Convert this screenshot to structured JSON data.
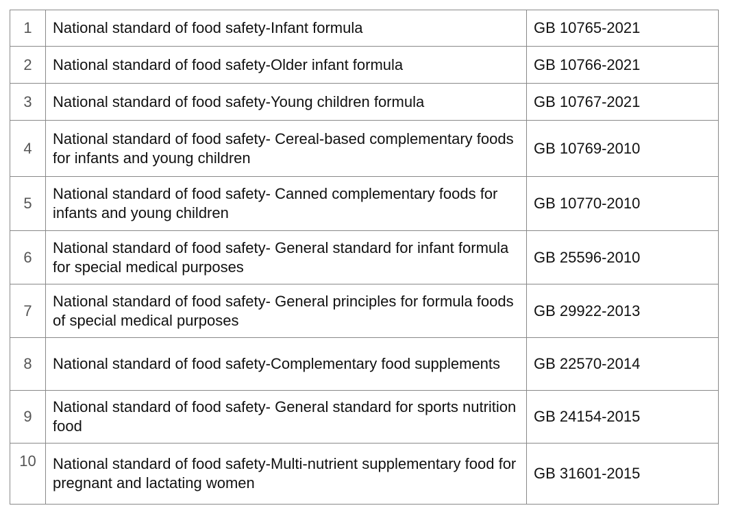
{
  "rows": [
    {
      "no": "1",
      "name": "National standard of food safety-Infant formula",
      "code": "GB 10765-2021"
    },
    {
      "no": "2",
      "name": "National standard of food safety-Older infant formula",
      "code": "GB 10766-2021"
    },
    {
      "no": "3",
      "name": "National standard of food safety-Young children formula",
      "code": "GB 10767-2021"
    },
    {
      "no": "4",
      "name": "National standard of food safety- Cereal-based complementary foods for infants and young children",
      "code": "GB 10769-2010"
    },
    {
      "no": "5",
      "name": "National standard of food safety- Canned complementary foods for infants and young children",
      "code": "GB 10770-2010"
    },
    {
      "no": "6",
      "name": "National standard of food safety- General standard for infant formula for special medical purposes",
      "code": "GB 25596-2010"
    },
    {
      "no": "7",
      "name": "National standard of food safety- General principles for formula foods of special medical purposes",
      "code": "GB 29922-2013"
    },
    {
      "no": "8",
      "name": "National standard of food safety-Complementary food supplements",
      "code": "GB 22570-2014"
    },
    {
      "no": "9",
      "name": "National standard of food safety- General standard for sports nutrition food",
      "code": "GB 24154-2015"
    },
    {
      "no": "10",
      "name": "National standard of food safety-Multi-nutrient supplementary food for pregnant and lactating women",
      "code": "GB 31601-2015"
    }
  ]
}
